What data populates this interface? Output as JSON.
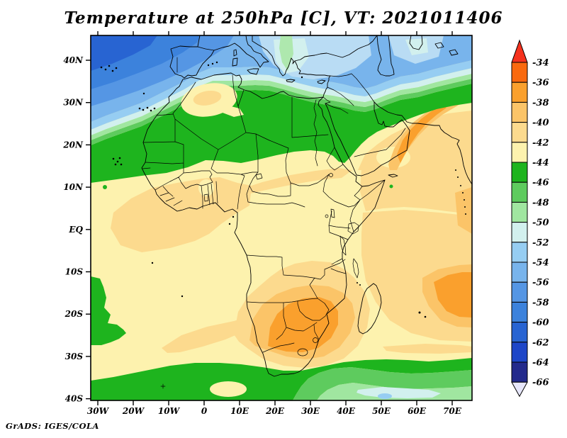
{
  "header": {
    "title": "Temperature at 250hPa [C], VT: 2021011406"
  },
  "footer": {
    "attribution": "GrADS: IGES/COLA"
  },
  "chart_data": {
    "type": "filled-contour-map",
    "title": "Temperature at 250hPa [C], VT: 2021011406",
    "variable": "Temperature",
    "level": "250hPa",
    "units": "C",
    "valid_time": "2021011406",
    "region": "Africa, Mediterranean, Arabia and surrounding oceans (approx 30W-75E, 40S-45N)",
    "x_ticks": [
      "30W",
      "20W",
      "10W",
      "0",
      "10E",
      "20E",
      "30E",
      "40E",
      "50E",
      "60E",
      "70E"
    ],
    "y_ticks": [
      "40N",
      "30N",
      "20N",
      "10N",
      "EQ",
      "10S",
      "20S",
      "30S",
      "40S"
    ],
    "legend_levels": [
      "-34",
      "-36",
      "-38",
      "-40",
      "-42",
      "-44",
      "-46",
      "-48",
      "-50",
      "-52",
      "-54",
      "-56",
      "-58",
      "-60",
      "-62",
      "-64",
      "-66"
    ],
    "legend_colors": [
      "#f9690e",
      "#faa02d",
      "#fbc468",
      "#fcda8e",
      "#fdf2ae",
      "#1eb41e",
      "#5ecb5e",
      "#a0e6a0",
      "#d2f0ee",
      "#96cdf2",
      "#78b4ec",
      "#5596e4",
      "#3c82dc",
      "#2864d2",
      "#1e46c8",
      "#232a8c"
    ],
    "over_color": "#f5321e",
    "under_color": "#e6e6fa",
    "field_pattern": [
      {
        "region": "NE Atlantic, Iberia and northern Mediterranean",
        "value_range_C": "-54 to -62"
      },
      {
        "region": "cold band across North Africa ~18N-33N (Morocco to Egypt, rising NE over Levant)",
        "value_range_C": "-44 to -52"
      },
      {
        "region": "central Sahara enclave (Algeria)",
        "value_range_C": "-40 to -44"
      },
      {
        "region": "Sahel and equatorial Africa",
        "value_range_C": "-40 to -44"
      },
      {
        "region": "southern Africa interior (Namibia, Botswana, South Africa, Zimbabwe, Mozambique)",
        "value_range_C": "-36 to -40"
      },
      {
        "region": "SW Indian Ocean near 60-75E, 10-25S",
        "value_range_C": "-36 to -40"
      },
      {
        "region": "Arabian Peninsula diagonal warm band toward Persian Gulf",
        "value_range_C": "-36 to -40"
      },
      {
        "region": "Southern Ocean band 33S-40S",
        "value_range_C": "-44 to -52"
      }
    ]
  }
}
